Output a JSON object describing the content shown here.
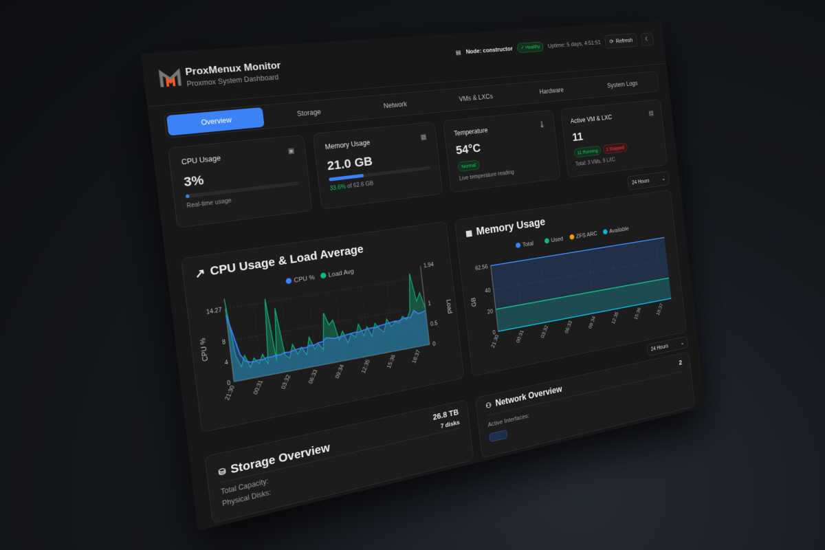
{
  "header": {
    "title": "ProxMenux Monitor",
    "subtitle": "Proxmox System Dashboard",
    "node": "Node: constructor",
    "health": "Healthy",
    "uptime": "Uptime: 5 days, 4:51:51",
    "refresh": "Refresh"
  },
  "tabs": [
    {
      "label": "Overview",
      "active": true
    },
    {
      "label": "Storage"
    },
    {
      "label": "Network"
    },
    {
      "label": "VMs & LXCs"
    },
    {
      "label": "Hardware"
    },
    {
      "label": "System Logs"
    }
  ],
  "stats": {
    "cpu": {
      "title": "CPU Usage",
      "value": "3%",
      "percent": 3,
      "note": "Real-time usage"
    },
    "memory": {
      "title": "Memory Usage",
      "value": "21.0 GB",
      "percent": 33.6,
      "percent_label": "33.6%",
      "of": " of 62.6 GB"
    },
    "temperature": {
      "title": "Temperature",
      "value": "54°C",
      "status": "Normal",
      "note": "Live temperature reading"
    },
    "vms": {
      "title": "Active VM & LXC",
      "value": "11",
      "running": "11 Running",
      "stopped": "1 Stopped",
      "note": "Total: 3 VMs, 9 LXC"
    }
  },
  "range_select": "24 Hours",
  "colors": {
    "accent": "#3b82f6",
    "green": "#10b981",
    "zfs": "#f59e0b",
    "cyan": "#06b6d4",
    "healthy": "#22c55e",
    "stopped": "#ef4444"
  },
  "chart_data": [
    {
      "type": "line",
      "title": "CPU Usage & Load Average",
      "xlabel": "",
      "ylabel": "CPU %",
      "y2label": "Load",
      "x_ticks": [
        "21:30",
        "00:31",
        "03:32",
        "06:33",
        "09:34",
        "12:35",
        "15:36",
        "18:37"
      ],
      "ylim": [
        0,
        14.27
      ],
      "y_ticks": [
        "0",
        "4",
        "8",
        "14.27"
      ],
      "y2lim": [
        0,
        1.94
      ],
      "y2_ticks": [
        "0",
        "0.5",
        "1",
        "1.94"
      ],
      "grid": true,
      "legend": "top",
      "series": [
        {
          "name": "CPU %",
          "axis": "left",
          "color": "#3b82f6",
          "values": [
            13,
            9,
            5,
            3.6,
            3.2,
            3.1,
            3.3,
            3.2,
            3.5,
            3.4,
            3.6,
            3.5,
            3.8,
            3.7,
            3.9,
            4.0,
            4.1,
            4.0,
            4.3,
            4.2,
            4.5,
            4.6,
            5.2,
            5.0,
            4.8,
            4.9,
            5.0,
            5.1,
            5.2,
            5.3,
            5.2,
            5.4,
            5.5,
            5.6,
            5.5,
            5.7,
            5.8,
            5.9,
            6.0,
            6.1,
            6.0,
            6.3,
            6.4,
            6.3,
            7.6,
            6.8,
            6.9,
            7.2
          ]
        },
        {
          "name": "Load Avg",
          "axis": "right",
          "color": "#10b981",
          "values": [
            1.9,
            0.6,
            0.3,
            0.55,
            0.25,
            0.45,
            0.3,
            0.5,
            0.25,
            1.75,
            0.3,
            1.5,
            0.4,
            0.3,
            0.6,
            0.35,
            0.5,
            0.3,
            0.7,
            0.4,
            0.5,
            0.35,
            1.2,
            0.9,
            1.0,
            0.5,
            0.7,
            0.4,
            0.6,
            0.5,
            0.8,
            0.5,
            0.7,
            0.45,
            0.75,
            0.6,
            0.5,
            0.8,
            0.6,
            0.7,
            0.65,
            0.8,
            0.7,
            0.9,
            1.8,
            1.1,
            1.3,
            0.9
          ]
        }
      ]
    },
    {
      "type": "area",
      "title": "Memory Usage",
      "ylabel": "GB",
      "x_ticks": [
        "21:30",
        "00:31",
        "03:32",
        "06:33",
        "09:34",
        "12:35",
        "15:36",
        "18:37"
      ],
      "ylim": [
        0,
        62.56
      ],
      "y_ticks": [
        "0",
        "20",
        "40",
        "62.56"
      ],
      "grid": true,
      "legend": "top",
      "series": [
        {
          "name": "Total",
          "color": "#3b82f6",
          "values": [
            62.56,
            62.56,
            62.56,
            62.56,
            62.56,
            62.56,
            62.56,
            62.56
          ]
        },
        {
          "name": "Used",
          "color": "#10b981",
          "values": [
            21,
            21,
            21,
            21,
            21,
            21,
            21,
            21
          ]
        },
        {
          "name": "ZFS ARC",
          "color": "#f59e0b",
          "values": [
            0,
            0,
            0,
            0,
            0,
            0,
            0,
            0
          ]
        },
        {
          "name": "Available",
          "color": "#06b6d4",
          "values": [
            0,
            0,
            0,
            0,
            0,
            0,
            0,
            0
          ]
        }
      ]
    }
  ],
  "storage": {
    "title": "Storage Overview",
    "capacity": "26.8 TB",
    "disks": "7 disks",
    "capacity_label": "Total Capacity:",
    "disks_label": "Physical Disks:"
  },
  "network": {
    "title": "Network Overview",
    "count": "2",
    "interfaces_label": "Active Interfaces:"
  }
}
